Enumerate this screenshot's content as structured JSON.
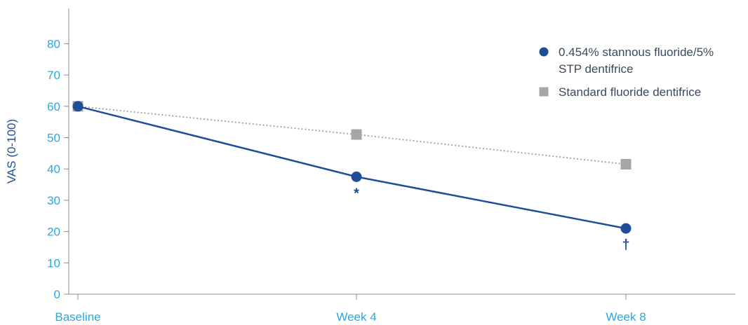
{
  "chart_data": {
    "type": "line",
    "categories": [
      "Baseline",
      "Week 4",
      "Week 8"
    ],
    "ylabel": "VAS (0-100)",
    "ylim": [
      0,
      90
    ],
    "yticks": [
      0,
      10,
      20,
      30,
      40,
      50,
      60,
      70,
      80
    ],
    "grid": false,
    "legend_position": "top-right",
    "series": [
      {
        "name": "0.454% stannous fluoride/5% STP dentifrice",
        "name_lines": [
          "0.454% stannous fluoride/5%",
          "STP dentifrice"
        ],
        "values": [
          60,
          37.5,
          21
        ],
        "color": "#1f4e96",
        "marker": "circle",
        "line_style": "solid"
      },
      {
        "name": "Standard fluoride dentifrice",
        "name_lines": [
          "Standard fluoride dentifrice"
        ],
        "values": [
          60,
          51,
          41.5
        ],
        "color": "#a6a6a6",
        "marker": "square",
        "line_style": "dotted"
      }
    ],
    "annotations": [
      {
        "text": "*",
        "category": "Week 4",
        "series": 0
      },
      {
        "text": "†",
        "category": "Week 8",
        "series": 0
      }
    ],
    "axis_color": "#8c8c8c",
    "tick_color": "#29a9e0"
  }
}
